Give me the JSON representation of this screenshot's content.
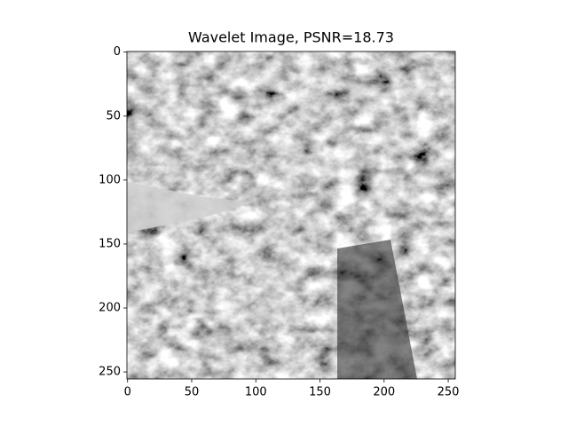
{
  "chart_data": {
    "type": "image",
    "title": "Wavelet Image, PSNR=18.73",
    "xlim": [
      -0.5,
      255.5
    ],
    "xticks": [
      0,
      50,
      100,
      150,
      200,
      250
    ],
    "ylim": [
      255.5,
      -0.5
    ],
    "yticks": [
      0,
      50,
      100,
      150,
      200,
      250
    ],
    "colormap": "gray"
  }
}
